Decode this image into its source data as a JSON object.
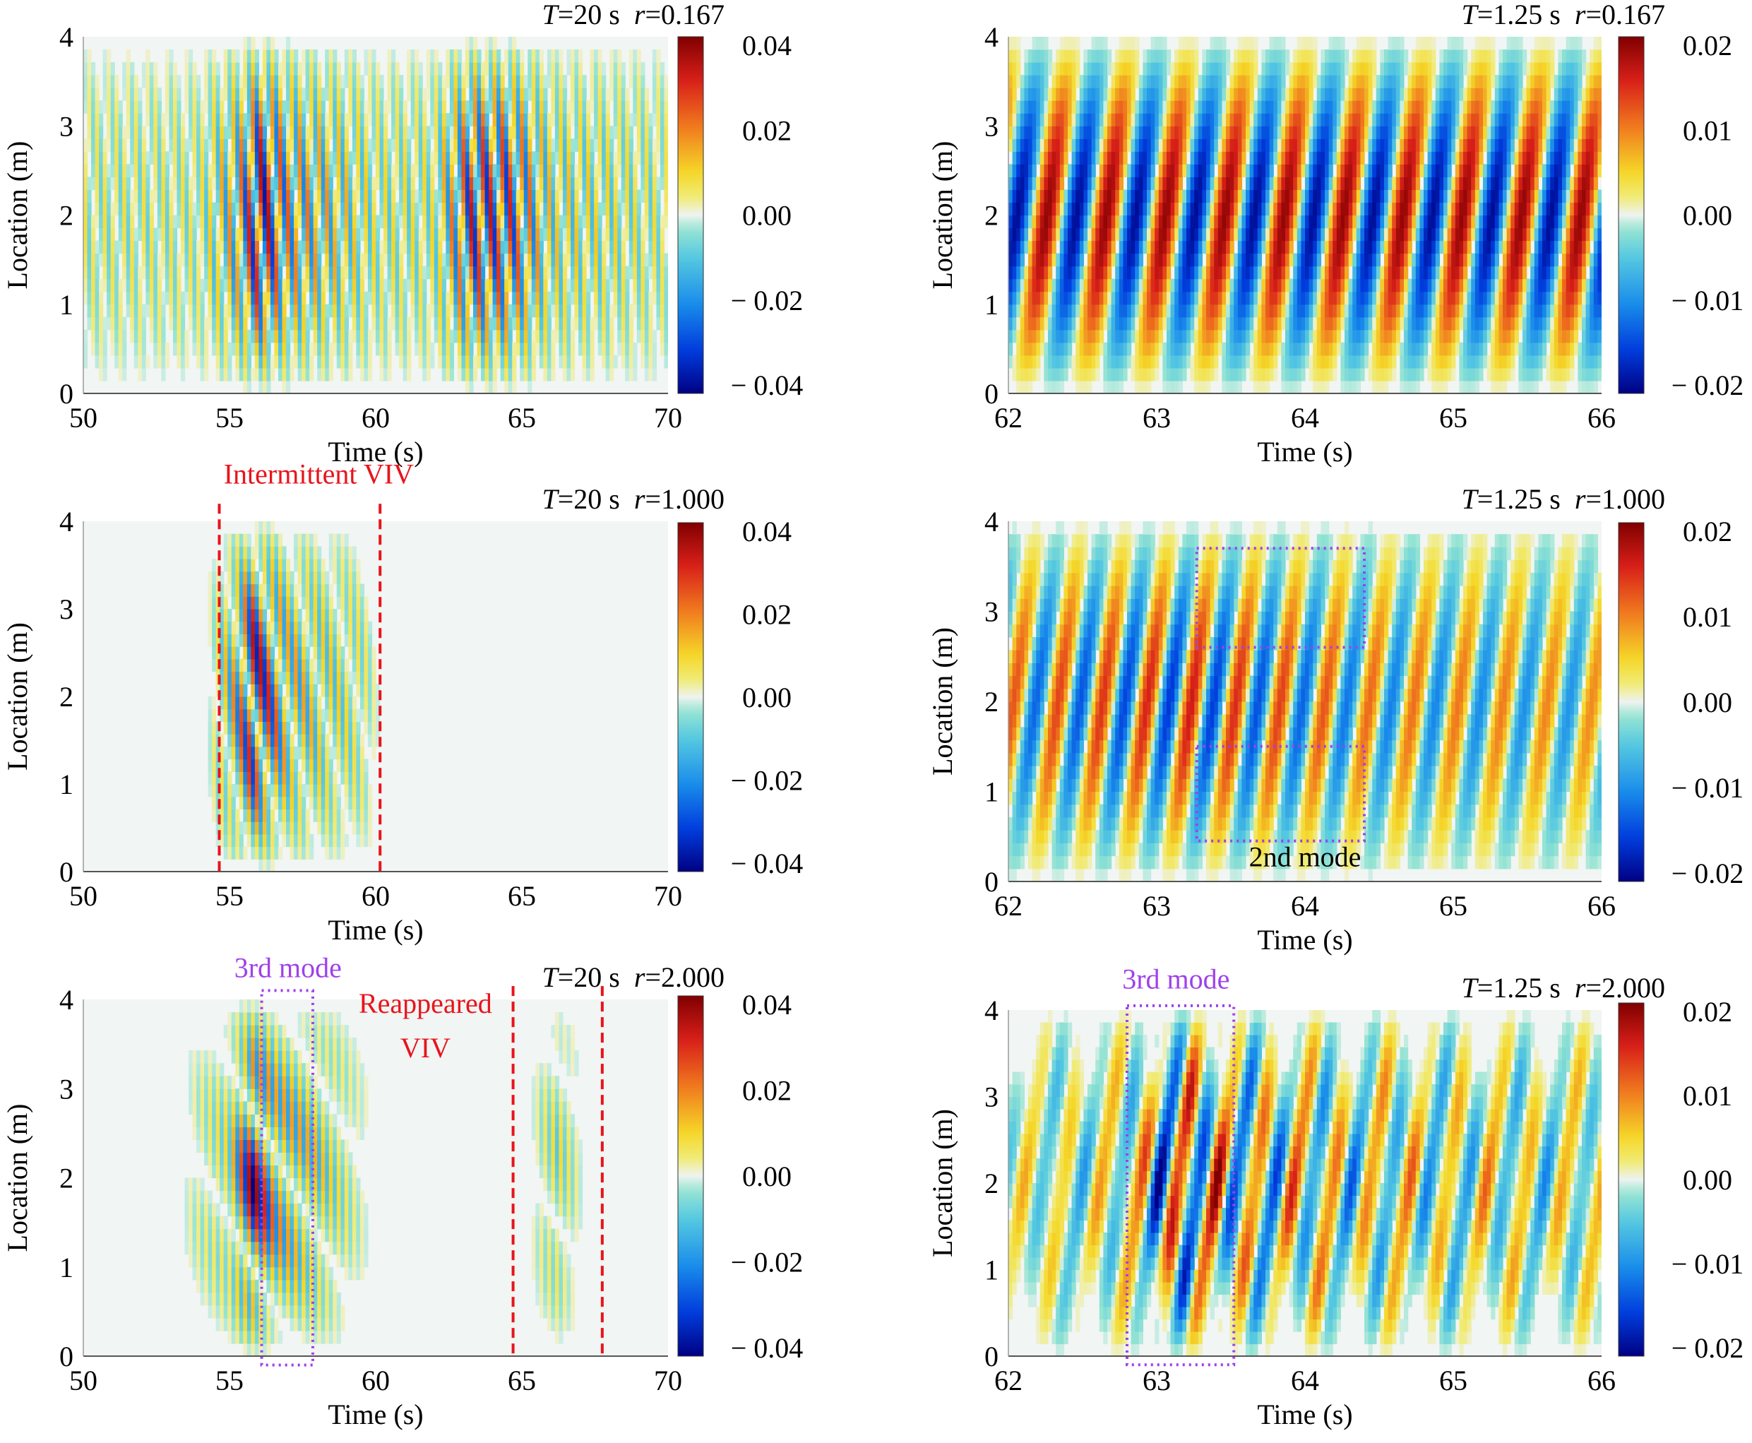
{
  "chart_data": [
    {
      "type": "heatmap",
      "header": {
        "T_label": "T",
        "T_value": "=20 s",
        "r_label": "r",
        "r_value": "=0.167"
      },
      "xlabel": "Time (s)",
      "ylabel": "Location (m)",
      "xlim": [
        50,
        70
      ],
      "ylim": [
        0,
        4
      ],
      "xticks": [
        50,
        55,
        60,
        65,
        70
      ],
      "xtick_labels": [
        "50",
        "55",
        "60",
        "65",
        "70"
      ],
      "yticks": [
        0,
        1,
        2,
        3,
        4
      ],
      "ytick_labels": [
        "0",
        "1",
        "2",
        "3",
        "4"
      ],
      "colorbar": {
        "range": [
          -0.04,
          0.04
        ],
        "tick_labels": [
          "0.04",
          "0.02",
          "0.00",
          "− 0.02",
          "− 0.04"
        ]
      },
      "field": {
        "period": 0.33,
        "envelope": [
          [
            50,
            0.2
          ],
          [
            54,
            0.2
          ],
          [
            55.3,
            0.55
          ],
          [
            56,
            1.0
          ],
          [
            57,
            0.6
          ],
          [
            60,
            0.25
          ],
          [
            62,
            0.25
          ],
          [
            63.3,
            0.85
          ],
          [
            64.5,
            0.8
          ],
          [
            66,
            0.35
          ],
          [
            70,
            0.2
          ]
        ],
        "modes": [
          1
        ],
        "soft": 0.25
      },
      "annotations": [],
      "boxes": []
    },
    {
      "type": "heatmap",
      "header": {
        "T_label": "T",
        "T_value": "=1.25 s",
        "r_label": "r",
        "r_value": "=0.167"
      },
      "xlabel": "Time (s)",
      "ylabel": "Location (m)",
      "xlim": [
        62,
        66
      ],
      "ylim": [
        0,
        4
      ],
      "xticks": [
        62,
        63,
        64,
        65,
        66
      ],
      "xtick_labels": [
        "62",
        "63",
        "64",
        "65",
        "66"
      ],
      "yticks": [
        0,
        1,
        2,
        3,
        4
      ],
      "ytick_labels": [
        "0",
        "1",
        "2",
        "3",
        "4"
      ],
      "colorbar": {
        "range": [
          -0.02,
          0.02
        ],
        "tick_labels": [
          "0.02",
          "0.01",
          "0.00",
          "− 0.01",
          "− 0.02"
        ]
      },
      "field": {
        "period": 0.4,
        "envelope": [
          [
            62,
            0.95
          ],
          [
            66,
            0.95
          ]
        ],
        "modes": [
          1
        ],
        "soft": 0.08
      },
      "annotations": [],
      "boxes": []
    },
    {
      "type": "heatmap",
      "header": {
        "T_label": "T",
        "T_value": "=20 s",
        "r_label": "r",
        "r_value": "=1.000"
      },
      "xlabel": "Time (s)",
      "ylabel": "Location (m)",
      "xlim": [
        50,
        70
      ],
      "ylim": [
        0,
        4
      ],
      "xticks": [
        50,
        55,
        60,
        65,
        70
      ],
      "xtick_labels": [
        "50",
        "55",
        "60",
        "65",
        "70"
      ],
      "yticks": [
        0,
        1,
        2,
        3,
        4
      ],
      "ytick_labels": [
        "0",
        "1",
        "2",
        "3",
        "4"
      ],
      "colorbar": {
        "range": [
          -0.04,
          0.04
        ],
        "tick_labels": [
          "0.04",
          "0.02",
          "0.00",
          "− 0.02",
          "− 0.04"
        ]
      },
      "field": {
        "period": 0.3,
        "envelope": [
          [
            50,
            0.0
          ],
          [
            54.2,
            0.0
          ],
          [
            55.2,
            0.5
          ],
          [
            55.8,
            1.0
          ],
          [
            57,
            0.45
          ],
          [
            59.5,
            0.2
          ],
          [
            60.2,
            0.0
          ],
          [
            70,
            0.0
          ]
        ],
        "modes": [
          1
        ],
        "soft": 0.25
      },
      "annotations": [
        {
          "text": "Intermittent VIV",
          "color": "#e8141c",
          "x": 54.8,
          "y": 4.43,
          "anchor": "start"
        }
      ],
      "boxes": [
        {
          "x0": 54.65,
          "x1": 54.65,
          "y0": 0,
          "y1": 4.2,
          "color": "#e8141c",
          "style": "dashed"
        },
        {
          "x0": 60.15,
          "x1": 60.15,
          "y0": 0,
          "y1": 4.2,
          "color": "#e8141c",
          "style": "dashed"
        }
      ]
    },
    {
      "type": "heatmap",
      "header": {
        "T_label": "T",
        "T_value": "=1.25 s",
        "r_label": "r",
        "r_value": "=1.000"
      },
      "xlabel": "Time (s)",
      "ylabel": "Location (m)",
      "xlim": [
        62,
        66
      ],
      "ylim": [
        0,
        4
      ],
      "xticks": [
        62,
        63,
        64,
        65,
        66
      ],
      "xtick_labels": [
        "62",
        "63",
        "64",
        "65",
        "66"
      ],
      "yticks": [
        0,
        1,
        2,
        3,
        4
      ],
      "ytick_labels": [
        "0",
        "1",
        "2",
        "3",
        "4"
      ],
      "colorbar": {
        "range": [
          -0.02,
          0.02
        ],
        "tick_labels": [
          "0.02",
          "0.01",
          "0.00",
          "− 0.01",
          "− 0.02"
        ]
      },
      "field": {
        "period": 0.3,
        "envelope": [
          [
            62,
            0.6
          ],
          [
            63.2,
            0.8
          ],
          [
            64.4,
            0.55
          ],
          [
            66,
            0.45
          ]
        ],
        "modes": [
          1
        ],
        "soft": 0.2
      },
      "annotations": [
        {
          "text": "2nd mode",
          "color": "#000000",
          "x": 64.0,
          "y": 0.17,
          "anchor": "middle"
        }
      ],
      "boxes": [
        {
          "x0": 63.27,
          "x1": 64.4,
          "y0": 2.6,
          "y1": 3.7,
          "color": "#a040ea",
          "style": "dotted"
        },
        {
          "x0": 63.27,
          "x1": 64.4,
          "y0": 0.45,
          "y1": 1.5,
          "color": "#a040ea",
          "style": "dotted"
        }
      ]
    },
    {
      "type": "heatmap",
      "header": {
        "T_label": "T",
        "T_value": "=20 s",
        "r_label": "r",
        "r_value": "=2.000"
      },
      "xlabel": "Time (s)",
      "ylabel": "Location (m)",
      "xlim": [
        50,
        70
      ],
      "ylim": [
        0,
        4
      ],
      "xticks": [
        50,
        55,
        60,
        65,
        70
      ],
      "xtick_labels": [
        "50",
        "55",
        "60",
        "65",
        "70"
      ],
      "yticks": [
        0,
        1,
        2,
        3,
        4
      ],
      "ytick_labels": [
        "0",
        "1",
        "2",
        "3",
        "4"
      ],
      "colorbar": {
        "range": [
          -0.04,
          0.04
        ],
        "tick_labels": [
          "0.04",
          "0.02",
          "0.00",
          "− 0.02",
          "− 0.04"
        ]
      },
      "field": {
        "period": 0.28,
        "envelope": [
          [
            50,
            0.0
          ],
          [
            53.2,
            0.0
          ],
          [
            55,
            0.25
          ],
          [
            55.8,
            1.0
          ],
          [
            56.6,
            0.55
          ],
          [
            58,
            0.35
          ],
          [
            59.3,
            0.1
          ],
          [
            60,
            0.0
          ],
          [
            65.2,
            0.0
          ],
          [
            66.2,
            0.25
          ],
          [
            67.2,
            0.0
          ],
          [
            70,
            0.0
          ]
        ],
        "modes": [
          1
        ],
        "soft": 0.25
      },
      "annotations": [
        {
          "text": "3rd mode",
          "color": "#a040ea",
          "x": 57.0,
          "y": 4.25,
          "anchor": "middle"
        },
        {
          "text": "Reappeared",
          "color": "#e8141c",
          "x": 61.7,
          "y": 3.85,
          "anchor": "middle"
        },
        {
          "text": "VIV",
          "color": "#e8141c",
          "x": 61.7,
          "y": 3.35,
          "anchor": "middle"
        }
      ],
      "boxes": [
        {
          "x0": 56.1,
          "x1": 57.85,
          "y0": -0.1,
          "y1": 4.1,
          "color": "#a040ea",
          "style": "dotted"
        },
        {
          "x0": 64.7,
          "x1": 64.7,
          "y0": 0,
          "y1": 4.15,
          "color": "#e8141c",
          "style": "dashed"
        },
        {
          "x0": 67.75,
          "x1": 67.75,
          "y0": 0,
          "y1": 4.15,
          "color": "#e8141c",
          "style": "dashed"
        }
      ]
    },
    {
      "type": "heatmap",
      "header": {
        "T_label": "T",
        "T_value": "=1.25 s",
        "r_label": "r",
        "r_value": "=2.000"
      },
      "xlabel": "Time (s)",
      "ylabel": "Location (m)",
      "xlim": [
        62,
        66
      ],
      "ylim": [
        0,
        4
      ],
      "xticks": [
        62,
        63,
        64,
        65,
        66
      ],
      "xtick_labels": [
        "62",
        "63",
        "64",
        "65",
        "66"
      ],
      "yticks": [
        0,
        1,
        2,
        3,
        4
      ],
      "ytick_labels": [
        "0",
        "1",
        "2",
        "3",
        "4"
      ],
      "colorbar": {
        "range": [
          -0.02,
          0.02
        ],
        "tick_labels": [
          "0.02",
          "0.01",
          "0.00",
          "− 0.01",
          "− 0.02"
        ]
      },
      "field": {
        "period": 0.26,
        "envelope": [
          [
            62,
            0.25
          ],
          [
            62.8,
            0.4
          ],
          [
            63.1,
            0.95
          ],
          [
            63.5,
            0.7
          ],
          [
            64.3,
            0.5
          ],
          [
            66,
            0.35
          ]
        ],
        "modes": [
          1,
          3
        ],
        "soft": 0.2
      },
      "annotations": [
        {
          "text": "3rd mode",
          "color": "#a040ea",
          "x": 63.13,
          "y": 4.25,
          "anchor": "middle"
        }
      ],
      "boxes": [
        {
          "x0": 62.8,
          "x1": 63.52,
          "y0": -0.1,
          "y1": 4.05,
          "color": "#a040ea",
          "style": "dotted"
        }
      ]
    }
  ]
}
